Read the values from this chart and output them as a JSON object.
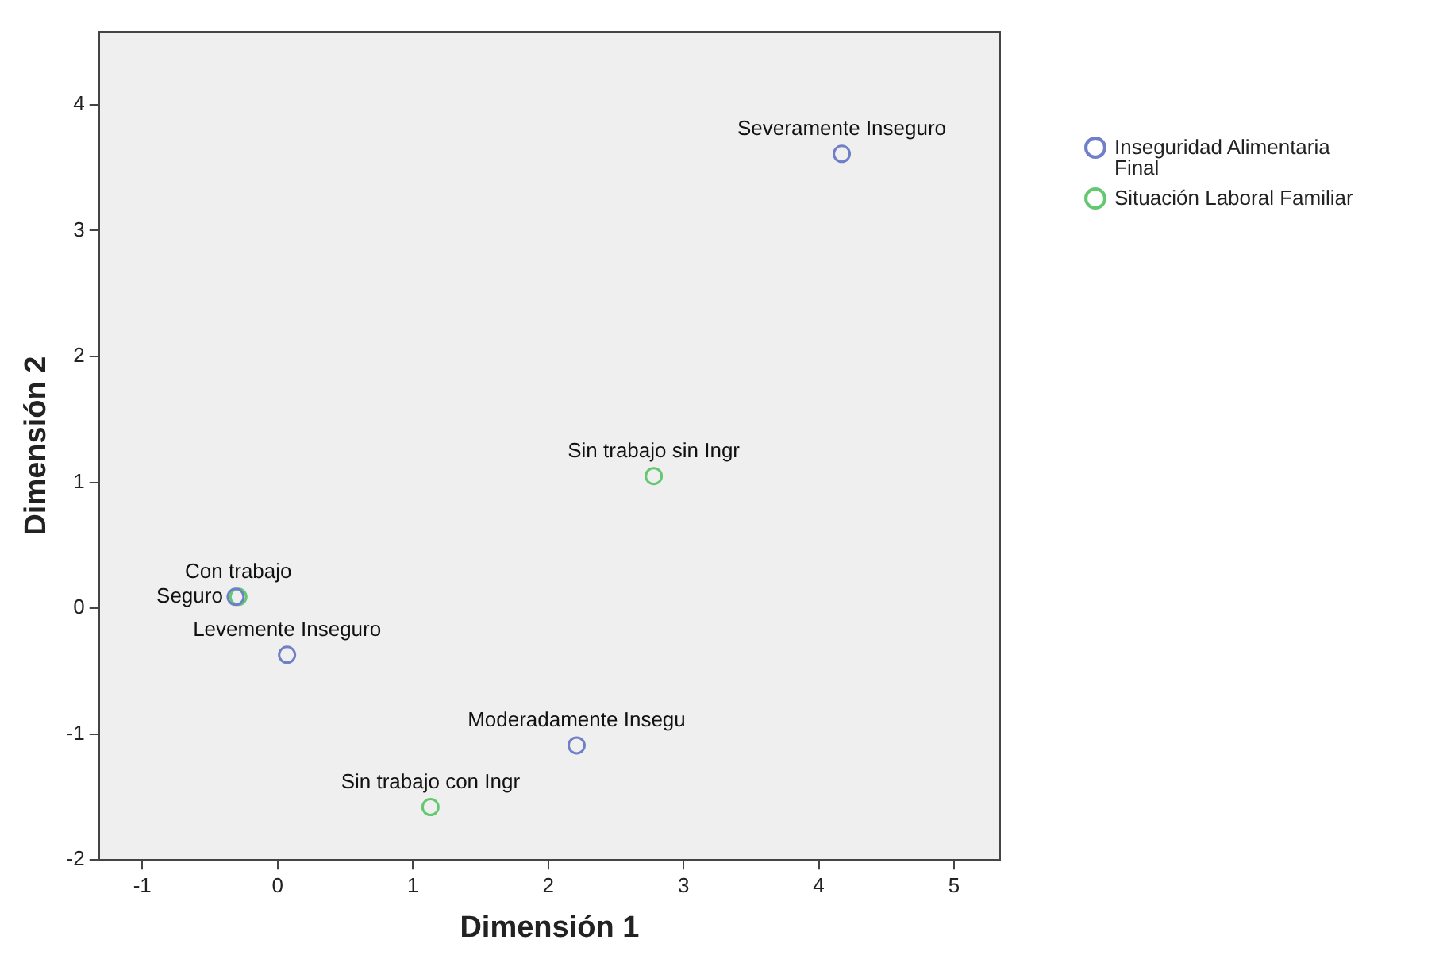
{
  "chart_data": {
    "type": "scatter",
    "xlabel": "Dimensión 1",
    "ylabel": "Dimensión 2",
    "xlim": [
      -1.32,
      5.34
    ],
    "ylim": [
      -2,
      4.58
    ],
    "xticks": [
      -1,
      0,
      1,
      2,
      3,
      4,
      5
    ],
    "yticks": [
      -2,
      -1,
      0,
      1,
      2,
      3,
      4
    ],
    "grid": false,
    "legend": "right",
    "marker": "circle",
    "series": [
      {
        "name": "Inseguridad Alimentaria Final",
        "color": "#6f7fc8",
        "x": [
          -0.31,
          0.07,
          2.21,
          4.17
        ],
        "values": [
          0.09,
          -0.37,
          -1.09,
          3.61
        ]
      },
      {
        "name": "Situación Laboral Familiar",
        "color": "#63c86f",
        "x": [
          -0.29,
          1.13,
          2.78
        ],
        "values": [
          0.09,
          -1.58,
          1.05
        ]
      }
    ],
    "annotations": [
      {
        "text": "Seguro",
        "x": -0.31,
        "y": 0.09
      },
      {
        "text": "Levemente Inseguro",
        "x": 0.07,
        "y": -0.37
      },
      {
        "text": "Moderadamente Insegu",
        "x": 2.21,
        "y": -1.09
      },
      {
        "text": "Severamente Inseguro",
        "x": 4.17,
        "y": 3.61
      },
      {
        "text": "Con trabajo",
        "x": -0.29,
        "y": 0.09
      },
      {
        "text": "Sin trabajo con Ingr",
        "x": 1.13,
        "y": -1.58
      },
      {
        "text": "Sin trabajo sin Ingr",
        "x": 2.78,
        "y": 1.05
      }
    ]
  }
}
